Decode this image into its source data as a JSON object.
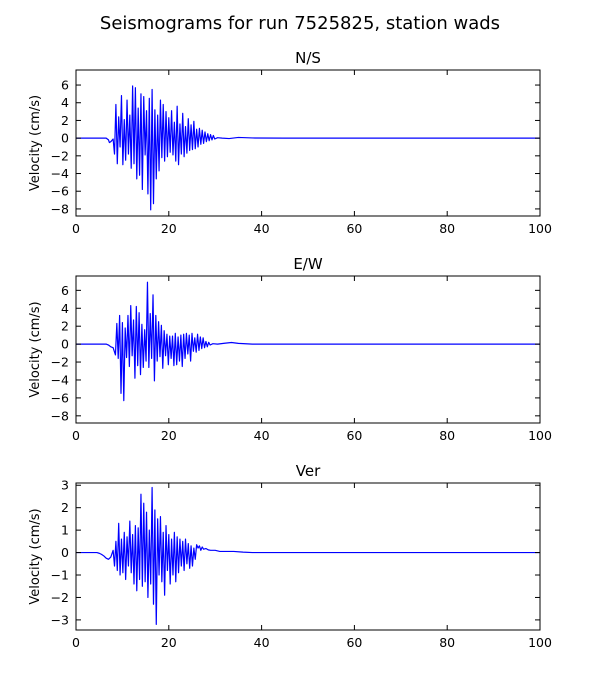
{
  "figure": {
    "title": "Seismograms for run 7525825, station wads"
  },
  "chart_data": [
    {
      "type": "line",
      "title": "N/S",
      "xlabel": "",
      "ylabel": "Velocity (cm/s)",
      "xlim": [
        0,
        100
      ],
      "ylim": [
        -8.8,
        7.7
      ],
      "xticks": [
        0,
        20,
        40,
        60,
        80,
        100
      ],
      "yticks": [
        -8,
        -6,
        -4,
        -2,
        0,
        2,
        4,
        6
      ],
      "grid": false,
      "line_color": "#0000ff",
      "x": [
        0,
        6.5,
        7.0,
        7.2,
        7.5,
        8.0,
        8.3,
        8.6,
        8.9,
        9.2,
        9.5,
        9.8,
        10.1,
        10.4,
        10.7,
        11.0,
        11.3,
        11.6,
        11.9,
        12.2,
        12.5,
        12.8,
        13.1,
        13.4,
        13.7,
        14.0,
        14.3,
        14.6,
        14.9,
        15.2,
        15.5,
        15.8,
        16.1,
        16.4,
        16.7,
        17.0,
        17.3,
        17.6,
        17.9,
        18.2,
        18.5,
        18.8,
        19.1,
        19.4,
        19.7,
        20.0,
        20.3,
        20.6,
        20.9,
        21.2,
        21.5,
        21.8,
        22.1,
        22.4,
        22.7,
        23.0,
        23.3,
        23.6,
        23.9,
        24.2,
        24.5,
        24.8,
        25.1,
        25.4,
        25.7,
        26.0,
        26.3,
        26.6,
        26.9,
        27.2,
        27.5,
        27.8,
        28.1,
        28.4,
        28.7,
        29.0,
        29.3,
        29.6,
        29.9,
        30.5,
        31.5,
        33.0,
        35.0,
        38.0,
        45.0,
        60.0,
        100
      ],
      "y": [
        0,
        0,
        -0.2,
        -0.5,
        -0.4,
        -0.1,
        -1.8,
        3.8,
        -2.9,
        2.4,
        -1.0,
        4.8,
        -3.0,
        2.1,
        -2.5,
        4.3,
        -1.8,
        2.6,
        -3.4,
        5.9,
        -2.9,
        5.7,
        -4.6,
        3.4,
        -4.2,
        5.0,
        -5.8,
        4.7,
        -1.9,
        3.1,
        -6.3,
        4.5,
        -8.1,
        5.5,
        -7.4,
        3.2,
        -4.6,
        2.6,
        -3.7,
        4.3,
        -2.2,
        3.8,
        -2.6,
        3.0,
        -2.1,
        2.3,
        -1.6,
        3.1,
        -1.9,
        1.8,
        -2.6,
        3.6,
        -3.0,
        1.6,
        -1.8,
        2.8,
        -2.1,
        1.3,
        -1.7,
        2.2,
        -1.4,
        1.5,
        -1.3,
        1.9,
        -1.2,
        1.0,
        -1.0,
        1.1,
        -0.7,
        0.9,
        -0.6,
        0.7,
        -0.4,
        0.5,
        -0.3,
        0.4,
        -0.2,
        0.3,
        -0.1,
        0.05,
        0,
        -0.05,
        0.08,
        0.02,
        0,
        0,
        0
      ]
    },
    {
      "type": "line",
      "title": "E/W",
      "xlabel": "",
      "ylabel": "Velocity (cm/s)",
      "xlim": [
        0,
        100
      ],
      "ylim": [
        -8.8,
        7.6
      ],
      "xticks": [
        0,
        20,
        40,
        60,
        80,
        100
      ],
      "yticks": [
        -8,
        -6,
        -4,
        -2,
        0,
        2,
        4,
        6
      ],
      "grid": false,
      "line_color": "#0000ff",
      "x": [
        0,
        6.5,
        7.0,
        7.5,
        8.0,
        8.5,
        8.8,
        9.1,
        9.4,
        9.7,
        10.0,
        10.3,
        10.6,
        10.9,
        11.2,
        11.5,
        11.8,
        12.1,
        12.4,
        12.7,
        13.0,
        13.3,
        13.6,
        13.9,
        14.2,
        14.5,
        14.8,
        15.1,
        15.4,
        15.7,
        16.0,
        16.3,
        16.6,
        16.9,
        17.2,
        17.5,
        17.8,
        18.1,
        18.4,
        18.7,
        19.0,
        19.3,
        19.6,
        19.9,
        20.2,
        20.5,
        20.8,
        21.1,
        21.4,
        21.7,
        22.0,
        22.3,
        22.6,
        22.9,
        23.2,
        23.5,
        23.8,
        24.1,
        24.4,
        24.7,
        25.0,
        25.3,
        25.6,
        25.9,
        26.2,
        26.5,
        26.8,
        27.1,
        27.4,
        27.7,
        28.0,
        28.3,
        28.6,
        28.9,
        29.5,
        30.5,
        32.0,
        33.5,
        35.0,
        38.0,
        45.0,
        60.0,
        100
      ],
      "y": [
        0,
        0,
        -0.1,
        -0.3,
        -0.4,
        -1.2,
        2.3,
        -1.6,
        3.2,
        -5.5,
        2.4,
        -6.3,
        1.8,
        -1.5,
        3.2,
        -2.5,
        4.3,
        -1.3,
        2.7,
        -3.8,
        4.2,
        -2.4,
        3.5,
        -3.4,
        2.2,
        -2.6,
        1.6,
        -1.9,
        6.9,
        -2.6,
        3.4,
        -1.6,
        5.5,
        -4.1,
        3.2,
        -1.9,
        2.5,
        -1.4,
        2.1,
        -2.7,
        1.5,
        -1.3,
        1.1,
        -2.3,
        0.9,
        -1.6,
        0.9,
        -2.4,
        1.2,
        -2.3,
        0.8,
        -1.9,
        1.0,
        -2.5,
        1.1,
        -1.6,
        1.2,
        -1.1,
        1.0,
        -1.9,
        1.2,
        -0.8,
        0.7,
        -0.9,
        1.1,
        -0.7,
        0.8,
        -0.5,
        0.7,
        -0.4,
        0.3,
        -0.3,
        0.2,
        -0.1,
        0.05,
        0,
        0.1,
        0.18,
        0.08,
        0,
        0,
        0,
        0
      ]
    },
    {
      "type": "line",
      "title": "Ver",
      "xlabel": "",
      "ylabel": "Velocity (cm/s)",
      "xlim": [
        0,
        100
      ],
      "ylim": [
        -3.45,
        3.1
      ],
      "xticks": [
        0,
        20,
        40,
        60,
        80,
        100
      ],
      "yticks": [
        -3,
        -2,
        -1,
        0,
        1,
        2,
        3
      ],
      "grid": false,
      "line_color": "#0000ff",
      "x": [
        0,
        4.5,
        5.0,
        5.5,
        6.0,
        6.5,
        7.0,
        7.5,
        8.0,
        8.3,
        8.6,
        8.9,
        9.2,
        9.5,
        9.8,
        10.1,
        10.4,
        10.7,
        11.0,
        11.3,
        11.6,
        11.9,
        12.2,
        12.5,
        12.8,
        13.1,
        13.4,
        13.7,
        14.0,
        14.3,
        14.6,
        14.9,
        15.2,
        15.5,
        15.8,
        16.1,
        16.4,
        16.7,
        17.0,
        17.3,
        17.6,
        17.9,
        18.2,
        18.5,
        18.8,
        19.1,
        19.4,
        19.7,
        20.0,
        20.3,
        20.6,
        20.9,
        21.2,
        21.5,
        21.8,
        22.1,
        22.4,
        22.7,
        23.0,
        23.3,
        23.6,
        23.9,
        24.2,
        24.5,
        24.8,
        25.1,
        25.4,
        25.7,
        26.0,
        26.3,
        26.6,
        26.9,
        27.2,
        27.5,
        28.0,
        28.5,
        29.0,
        30.0,
        31.0,
        32.5,
        34.0,
        36.0,
        38.0,
        42.0,
        50.0,
        60.0,
        100
      ],
      "y": [
        0,
        0,
        -0.03,
        -0.08,
        -0.15,
        -0.25,
        -0.3,
        -0.2,
        0.1,
        -0.6,
        0.5,
        -0.8,
        1.3,
        -1.0,
        0.6,
        -0.9,
        0.9,
        -1.2,
        0.7,
        -0.6,
        1.4,
        -0.9,
        0.8,
        -1.4,
        1.2,
        -1.7,
        1.1,
        -1.2,
        2.6,
        -1.5,
        2.2,
        -1.3,
        1.8,
        -2.0,
        1.0,
        -1.4,
        2.9,
        -2.3,
        1.9,
        -3.2,
        1.5,
        -1.0,
        1.6,
        -1.3,
        0.9,
        -1.9,
        1.2,
        -0.8,
        0.8,
        -1.4,
        0.6,
        -1.0,
        0.9,
        -1.3,
        0.7,
        -0.9,
        0.6,
        -0.6,
        0.5,
        -0.8,
        0.6,
        -0.5,
        0.4,
        -0.7,
        0.3,
        -0.6,
        0.2,
        -0.3,
        0.35,
        0.2,
        0.3,
        0.1,
        0.25,
        0.15,
        0.18,
        0.12,
        0.1,
        0.1,
        0.05,
        0.05,
        0.05,
        0.02,
        0,
        0,
        0,
        0,
        0
      ]
    }
  ]
}
